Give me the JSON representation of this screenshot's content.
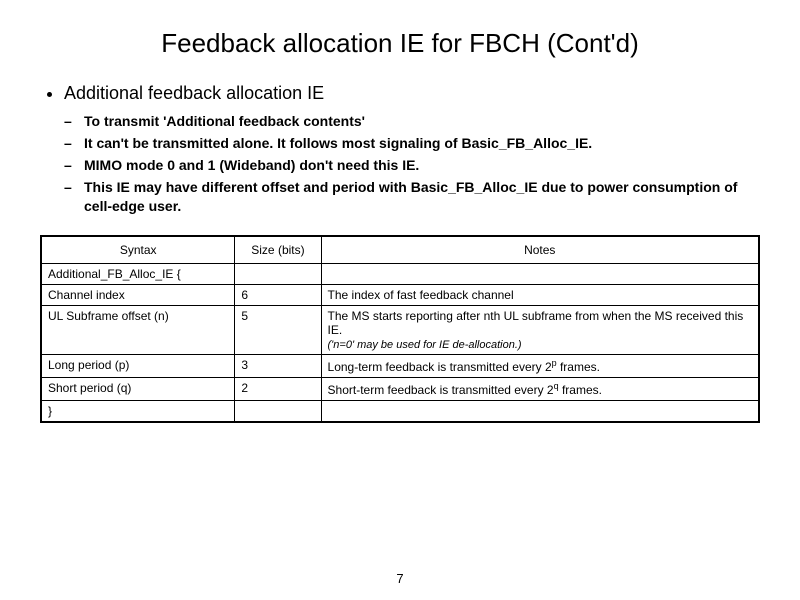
{
  "title": "Feedback allocation IE for FBCH (Cont'd)",
  "top_bullet": "Additional feedback allocation IE",
  "sub_bullets": [
    "To transmit 'Additional feedback contents'",
    "It can't be transmitted alone. It follows most signaling of Basic_FB_Alloc_IE.",
    "MIMO mode 0 and 1 (Wideband) don't need this IE.",
    "This IE may have different offset and period with Basic_FB_Alloc_IE due to power consumption of cell-edge user."
  ],
  "table": {
    "headers": {
      "syntax": "Syntax",
      "size": "Size (bits)",
      "notes": "Notes"
    },
    "open_brace": "Additional_FB_Alloc_IE {",
    "close_brace": "}",
    "rows": [
      {
        "syntax": "Channel index",
        "size": "6",
        "notes": "The index of fast feedback channel"
      },
      {
        "syntax": "UL Subframe offset (n)",
        "size": "5",
        "notes_main": "The MS starts reporting after nth UL subframe from when the MS received this IE.",
        "notes_sub": "('n=0' may be used for IE de-allocation.)"
      },
      {
        "syntax": "Long period  (p)",
        "size": "3",
        "notes_pre": "Long-term feedback is transmitted every 2",
        "notes_sup": "p",
        "notes_post": " frames."
      },
      {
        "syntax": "Short period (q)",
        "size": "2",
        "notes_pre": "Short-term feedback is transmitted every 2",
        "notes_sup": "q",
        "notes_post": " frames."
      }
    ]
  },
  "page_number": "7"
}
